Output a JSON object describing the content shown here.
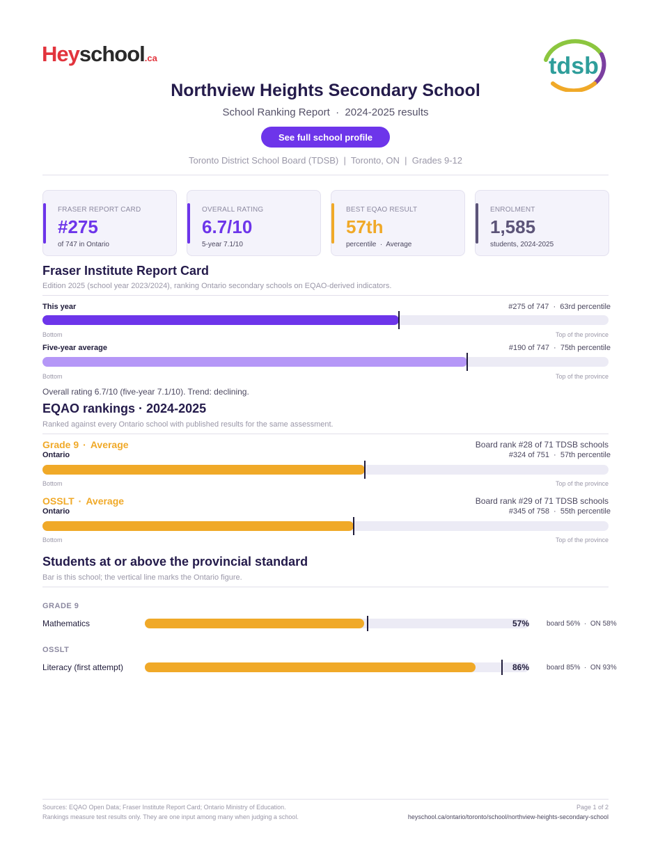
{
  "brand": {
    "hey": "Hey",
    "school": "school",
    "ca": ".ca",
    "board_logo_text": "tdsb"
  },
  "header": {
    "title": "Northview Heights Secondary School",
    "subtitle": "School Ranking Report  ·  2024-2025 results",
    "profile_button": "See full school profile",
    "meta": "Toronto District School Board (TDSB)  |  Toronto, ON  |  Grades 9-12"
  },
  "cards": [
    {
      "label": "FRASER REPORT CARD",
      "value": "#275",
      "sub": "of 747 in Ontario",
      "color": "#6d35ea"
    },
    {
      "label": "OVERALL RATING",
      "value": "6.7/10",
      "sub": "5-year 7.1/10",
      "color": "#6d35ea"
    },
    {
      "label": "BEST EQAO RESULT",
      "value": "57th",
      "sub": "percentile  ·  Average",
      "color": "#f0a928"
    },
    {
      "label": "ENROLMENT",
      "value": "1,585",
      "sub": "students, 2024-2025",
      "color": "#5c5478"
    }
  ],
  "fraser": {
    "title": "Fraser Institute Report Card",
    "desc": "Edition 2025 (school year 2023/2024), ranking Ontario secondary schools on EQAO-derived indicators.",
    "rows": [
      {
        "label": "This year",
        "rank": "#275 of 747  ·  63rd percentile",
        "percentile": 63,
        "color": "#6d35ea"
      },
      {
        "label": "Five-year average",
        "rank": "#190 of 747  ·  75th percentile",
        "percentile": 75,
        "color": "#b597f7"
      }
    ],
    "axis_left": "Bottom",
    "axis_right": "Top of the province",
    "overall": "Overall rating 6.7/10 (five-year 7.1/10). Trend: declining."
  },
  "eqao": {
    "title": "EQAO rankings  ·  2024-2025",
    "desc": "Ranked against every Ontario school with published results for the same assessment.",
    "items": [
      {
        "test": "Grade 9",
        "level": "Average",
        "board_rank": "Board rank #28 of 71 TDSB schools",
        "scope": "Ontario",
        "rank": "#324 of 751  ·  57th percentile",
        "percentile": 57
      },
      {
        "test": "OSSLT",
        "level": "Average",
        "board_rank": "Board rank #29 of 71 TDSB schools",
        "scope": "Ontario",
        "rank": "#345 of 758  ·  55th percentile",
        "percentile": 55
      }
    ],
    "axis_left": "Bottom",
    "axis_right": "Top of the province",
    "dot": "·"
  },
  "standard": {
    "title": "Students at or above the provincial standard",
    "desc": "Bar is this school; the vertical line marks the Ontario figure.",
    "groups": [
      {
        "name": "GRADE 9",
        "subject": "Mathematics",
        "school": 57,
        "ontario": 58,
        "pct": "57%",
        "compare": "board 56%  ·  ON 58%"
      },
      {
        "name": "OSSLT",
        "subject": "Literacy (first attempt)",
        "school": 86,
        "ontario": 93,
        "pct": "86%",
        "compare": "board 85%  ·  ON 93%"
      }
    ]
  },
  "footer": {
    "sources": "Sources: EQAO Open Data; Fraser Institute Report Card; Ontario Ministry of Education.",
    "disclaimer": "Rankings measure test results only. They are one input among many when judging a school.",
    "page": "Page 1 of 2",
    "url": "heyschool.ca/ontario/toronto/school/northview-heights-secondary-school"
  }
}
